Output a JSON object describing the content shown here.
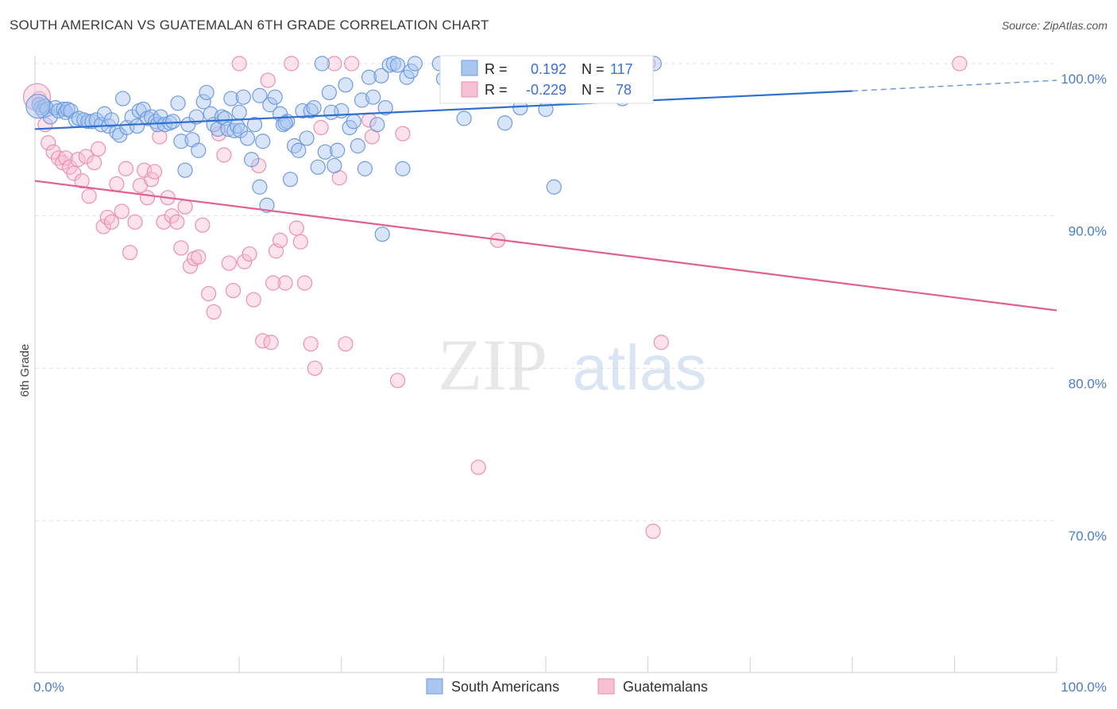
{
  "title": "SOUTH AMERICAN VS GUATEMALAN 6TH GRADE CORRELATION CHART",
  "source": "Source: ZipAtlas.com",
  "watermark": {
    "zip": "ZIP",
    "atlas": "atlas"
  },
  "colors": {
    "blue_fill": "#a9c6ef",
    "blue_stroke": "#6f9ae0",
    "blue_line": "#2f6fcf",
    "pink_fill": "#f6bfd2",
    "pink_stroke": "#ec8fb0",
    "pink_line": "#e0608f",
    "grid": "#e2e2e2",
    "axis_text": "#4a7cc9"
  },
  "legend": {
    "south_americans": "South Americans",
    "guatemalans": "Guatemalans"
  },
  "stats": {
    "r_label": "R =",
    "n_label": "N =",
    "blue_r": "0.192",
    "blue_n": "117",
    "pink_r": "-0.229",
    "pink_n": "78"
  },
  "chart_data": {
    "type": "scatter",
    "title": "SOUTH AMERICAN VS GUATEMALAN 6TH GRADE CORRELATION CHART",
    "xlabel": "",
    "ylabel": "6th Grade",
    "xlim": [
      0,
      100
    ],
    "ylim": [
      60.5,
      101.5
    ],
    "x_tick_labels": [
      "0.0%",
      "100.0%"
    ],
    "y_ticks": [
      70,
      80,
      90,
      100
    ],
    "y_tick_labels": [
      "70.0%",
      "80.0%",
      "90.0%",
      "100.0%"
    ],
    "grid": true,
    "legend_position": "bottom",
    "series": [
      {
        "name": "South Americans",
        "color": "#a9c6ef",
        "r": 0.192,
        "n": 117,
        "trend": {
          "x0": 0,
          "y0": 95.7,
          "x1": 80,
          "y1": 98.2,
          "dash_to_x": 100,
          "dash_to_y": 98.9
        },
        "points": [
          [
            0.4,
            97.3
          ],
          [
            0.6,
            97.1
          ],
          [
            0.8,
            96.9
          ],
          [
            1.0,
            97.2
          ],
          [
            1.2,
            97.0
          ],
          [
            1.5,
            96.5
          ],
          [
            2.0,
            97.1
          ],
          [
            2.3,
            96.9
          ],
          [
            2.8,
            97.0
          ],
          [
            3.0,
            96.8
          ],
          [
            3.2,
            97.0
          ],
          [
            3.5,
            96.9
          ],
          [
            4.0,
            96.3
          ],
          [
            4.3,
            96.4
          ],
          [
            4.8,
            96.3
          ],
          [
            5.2,
            96.2
          ],
          [
            5.6,
            96.2
          ],
          [
            6.0,
            96.3
          ],
          [
            6.5,
            96.0
          ],
          [
            6.8,
            96.7
          ],
          [
            7.2,
            95.9
          ],
          [
            7.5,
            96.3
          ],
          [
            8.0,
            95.5
          ],
          [
            8.3,
            95.3
          ],
          [
            8.6,
            97.7
          ],
          [
            9.0,
            95.8
          ],
          [
            9.5,
            96.5
          ],
          [
            10.0,
            95.9
          ],
          [
            10.2,
            96.9
          ],
          [
            10.6,
            97.0
          ],
          [
            11.0,
            96.4
          ],
          [
            11.4,
            96.5
          ],
          [
            11.8,
            96.2
          ],
          [
            12.0,
            96.0
          ],
          [
            12.3,
            96.5
          ],
          [
            12.7,
            96.0
          ],
          [
            13.2,
            96.1
          ],
          [
            13.5,
            96.2
          ],
          [
            14.0,
            97.4
          ],
          [
            14.3,
            94.9
          ],
          [
            14.7,
            93.0
          ],
          [
            15.0,
            96.0
          ],
          [
            15.4,
            95.0
          ],
          [
            15.8,
            96.5
          ],
          [
            16.5,
            97.5
          ],
          [
            16.8,
            98.1
          ],
          [
            17.2,
            96.7
          ],
          [
            17.5,
            96.0
          ],
          [
            17.9,
            95.7
          ],
          [
            18.3,
            96.5
          ],
          [
            18.6,
            96.4
          ],
          [
            18.9,
            95.7
          ],
          [
            19.2,
            97.7
          ],
          [
            19.5,
            95.6
          ],
          [
            19.8,
            95.9
          ],
          [
            20.1,
            95.6
          ],
          [
            20.4,
            97.8
          ],
          [
            20.8,
            95.1
          ],
          [
            21.2,
            93.7
          ],
          [
            21.5,
            96.0
          ],
          [
            22.0,
            91.9
          ],
          [
            22.3,
            94.9
          ],
          [
            22.7,
            90.7
          ],
          [
            23.0,
            97.3
          ],
          [
            23.5,
            97.8
          ],
          [
            24.0,
            96.7
          ],
          [
            24.3,
            96.0
          ],
          [
            24.7,
            96.2
          ],
          [
            25.0,
            92.4
          ],
          [
            25.4,
            94.6
          ],
          [
            25.8,
            94.3
          ],
          [
            26.2,
            96.9
          ],
          [
            26.6,
            95.1
          ],
          [
            27.0,
            96.9
          ],
          [
            27.3,
            97.1
          ],
          [
            27.7,
            93.2
          ],
          [
            28.1,
            100.0
          ],
          [
            28.4,
            94.2
          ],
          [
            28.8,
            98.1
          ],
          [
            29.3,
            93.3
          ],
          [
            29.6,
            94.3
          ],
          [
            30.0,
            96.9
          ],
          [
            30.4,
            98.6
          ],
          [
            30.8,
            95.8
          ],
          [
            31.2,
            96.2
          ],
          [
            31.6,
            94.6
          ],
          [
            32.0,
            97.6
          ],
          [
            32.3,
            93.1
          ],
          [
            32.7,
            99.1
          ],
          [
            33.1,
            97.8
          ],
          [
            33.5,
            96.0
          ],
          [
            33.9,
            99.2
          ],
          [
            34.3,
            97.1
          ],
          [
            34.7,
            99.9
          ],
          [
            35.1,
            100.0
          ],
          [
            35.5,
            99.9
          ],
          [
            36.0,
            93.1
          ],
          [
            36.4,
            99.1
          ],
          [
            36.8,
            99.5
          ],
          [
            37.2,
            100.0
          ],
          [
            39.6,
            100.0
          ],
          [
            40.0,
            99.0
          ],
          [
            40.4,
            98.9
          ],
          [
            40.8,
            99.6
          ],
          [
            41.6,
            98.9
          ],
          [
            42.0,
            96.4
          ],
          [
            42.6,
            100.0
          ],
          [
            43.0,
            99.1
          ],
          [
            44.0,
            100.0
          ],
          [
            46.0,
            96.1
          ],
          [
            47.5,
            97.1
          ],
          [
            50.0,
            97.0
          ],
          [
            50.8,
            91.9
          ],
          [
            57.5,
            97.7
          ],
          [
            60.6,
            100.0
          ],
          [
            16.0,
            94.3
          ],
          [
            20.0,
            96.8
          ],
          [
            24.5,
            96.1
          ],
          [
            29.0,
            96.8
          ],
          [
            22.0,
            97.9
          ],
          [
            34.0,
            88.8
          ]
        ]
      },
      {
        "name": "Guatemalans",
        "color": "#f6bfd2",
        "r": -0.229,
        "n": 78,
        "trend": {
          "x0": 0,
          "y0": 92.3,
          "x1": 100,
          "y1": 83.8
        },
        "points": [
          [
            0.4,
            97.7
          ],
          [
            1.0,
            96.0
          ],
          [
            1.3,
            94.8
          ],
          [
            1.8,
            94.2
          ],
          [
            2.3,
            93.8
          ],
          [
            2.7,
            93.5
          ],
          [
            3.0,
            93.8
          ],
          [
            3.4,
            93.2
          ],
          [
            3.8,
            92.8
          ],
          [
            4.2,
            93.7
          ],
          [
            4.6,
            92.3
          ],
          [
            5.0,
            93.9
          ],
          [
            5.3,
            91.3
          ],
          [
            5.8,
            93.5
          ],
          [
            6.2,
            94.4
          ],
          [
            6.7,
            89.3
          ],
          [
            7.1,
            89.9
          ],
          [
            7.5,
            89.6
          ],
          [
            8.0,
            92.1
          ],
          [
            8.5,
            90.3
          ],
          [
            8.9,
            93.1
          ],
          [
            9.3,
            87.6
          ],
          [
            9.8,
            89.6
          ],
          [
            10.3,
            92.0
          ],
          [
            10.7,
            93.0
          ],
          [
            11.0,
            91.2
          ],
          [
            11.4,
            92.4
          ],
          [
            11.7,
            92.9
          ],
          [
            12.2,
            95.2
          ],
          [
            12.6,
            89.6
          ],
          [
            13.0,
            91.2
          ],
          [
            13.4,
            90.0
          ],
          [
            13.9,
            89.6
          ],
          [
            14.3,
            87.9
          ],
          [
            14.7,
            90.6
          ],
          [
            15.2,
            86.7
          ],
          [
            15.6,
            87.2
          ],
          [
            16.0,
            87.3
          ],
          [
            16.4,
            89.4
          ],
          [
            17.0,
            84.9
          ],
          [
            17.5,
            83.7
          ],
          [
            18.0,
            95.4
          ],
          [
            18.5,
            94.0
          ],
          [
            19.0,
            86.9
          ],
          [
            19.4,
            85.1
          ],
          [
            20.0,
            100.0
          ],
          [
            20.5,
            87.0
          ],
          [
            21.0,
            87.5
          ],
          [
            21.4,
            84.5
          ],
          [
            21.9,
            93.3
          ],
          [
            22.3,
            81.8
          ],
          [
            22.8,
            98.9
          ],
          [
            23.1,
            81.7
          ],
          [
            23.6,
            87.7
          ],
          [
            24.0,
            88.4
          ],
          [
            24.5,
            85.6
          ],
          [
            25.1,
            100.0
          ],
          [
            25.6,
            89.2
          ],
          [
            26.0,
            88.3
          ],
          [
            26.4,
            85.6
          ],
          [
            27.0,
            81.6
          ],
          [
            27.4,
            80.0
          ],
          [
            28.0,
            95.8
          ],
          [
            29.3,
            100.0
          ],
          [
            29.8,
            92.5
          ],
          [
            30.4,
            81.6
          ],
          [
            31.0,
            100.0
          ],
          [
            32.7,
            96.3
          ],
          [
            33.0,
            95.2
          ],
          [
            35.5,
            79.2
          ],
          [
            36.0,
            95.4
          ],
          [
            43.4,
            73.5
          ],
          [
            45.3,
            88.4
          ],
          [
            60.0,
            100.0
          ],
          [
            60.5,
            69.3
          ],
          [
            61.3,
            81.7
          ],
          [
            90.5,
            100.0
          ],
          [
            23.3,
            85.6
          ]
        ]
      }
    ]
  }
}
